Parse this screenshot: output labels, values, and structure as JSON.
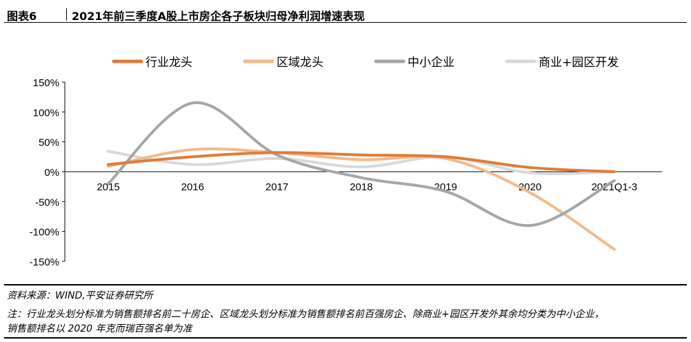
{
  "header": {
    "figure_label": "图表6",
    "title": "2021年前三季度A股上市房企各子板块归母净利润增速表现"
  },
  "chart_data": {
    "type": "line",
    "smooth": true,
    "categories": [
      "2015",
      "2016",
      "2017",
      "2018",
      "2019",
      "2020",
      "2021Q1-3"
    ],
    "yunit": "%",
    "ylim": [
      -150,
      150
    ],
    "yticks": [
      150,
      100,
      50,
      0,
      -50,
      -100,
      -150
    ],
    "ytick_labels": [
      "150%",
      "100%",
      "50%",
      "0%",
      "-50%",
      "-100%",
      "-150%"
    ],
    "legend_position": "top",
    "grid": false,
    "series": [
      {
        "name": "行业龙头",
        "color": "#E07B39",
        "values": [
          12,
          25,
          32,
          28,
          25,
          7,
          0
        ]
      },
      {
        "name": "区域龙头",
        "color": "#F4B98A",
        "values": [
          9,
          37,
          32,
          20,
          22,
          -35,
          -130
        ]
      },
      {
        "name": "中小企业",
        "color": "#A6A6A6",
        "values": [
          -20,
          115,
          28,
          -10,
          -33,
          -90,
          -15
        ]
      },
      {
        "name": "商业+园区开发",
        "color": "#D9D9D9",
        "values": [
          34,
          12,
          22,
          8,
          25,
          -2,
          0
        ]
      }
    ]
  },
  "footer": {
    "source": "资料来源：WIND,平安证券研究所",
    "note_line1": "注：行业龙头划分标准为销售额排名前二十房企、区域龙头划分标准为销售额排名前百强房企、除商业+园区开发外其余均分类为中小企业，",
    "note_line2": "销售额排名以 2020 年克而瑞百强名单为准"
  }
}
